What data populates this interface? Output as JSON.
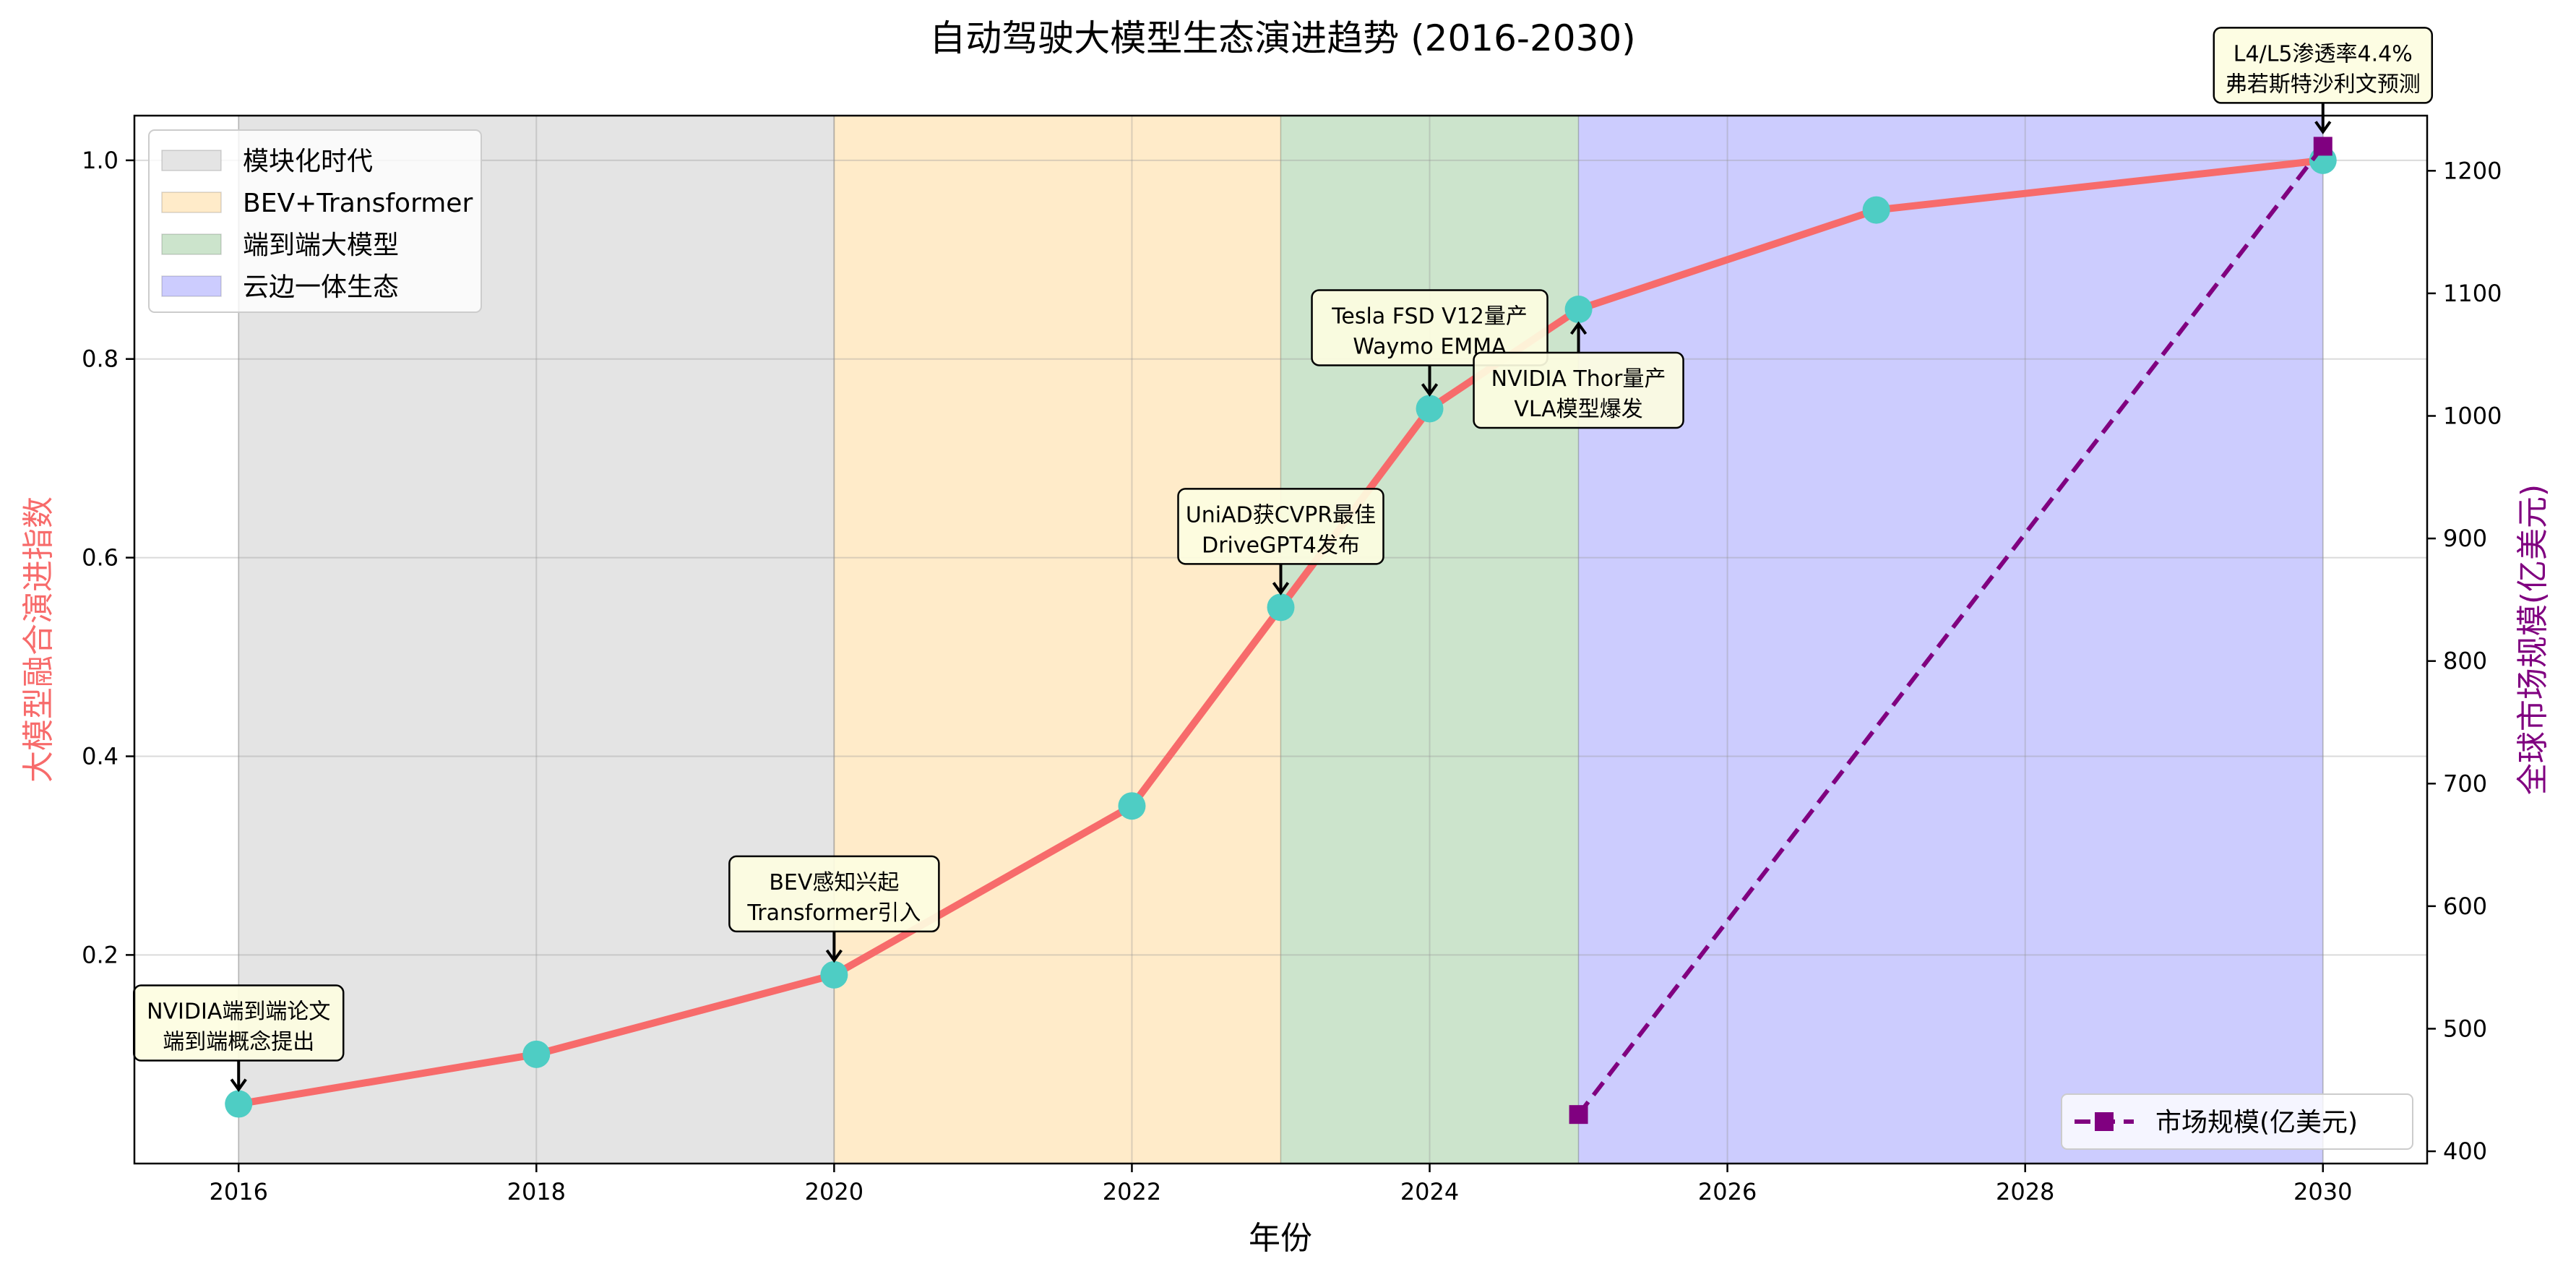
{
  "chart_data": {
    "type": "line",
    "title": "自动驾驶大模型生态演进趋势 (2016-2030)",
    "xlabel": "年份",
    "ylabel_left": "大模型融合演进指数",
    "ylabel_right": "全球市场规模(亿美元)",
    "xlim": [
      2015.3,
      2030.7
    ],
    "ylim_left": [
      -0.01,
      1.045
    ],
    "ylim_right": [
      390,
      1245
    ],
    "x_ticks": [
      2016,
      2018,
      2020,
      2022,
      2024,
      2026,
      2028,
      2030
    ],
    "y_ticks_left": [
      0.2,
      0.4,
      0.6,
      0.8,
      1.0
    ],
    "y_ticks_right": [
      400,
      500,
      600,
      700,
      800,
      900,
      1000,
      1100,
      1200
    ],
    "grid": true,
    "legend_left_position": "top-left",
    "legend_right_position": "bottom-right",
    "eras": [
      {
        "name": "模块化时代",
        "start": 2016,
        "end": 2020,
        "color": "#e4e4e4"
      },
      {
        "name": "BEV+Transformer",
        "start": 2020,
        "end": 2023,
        "color": "#ffebc9"
      },
      {
        "name": "端到端大模型",
        "start": 2023,
        "end": 2025,
        "color": "#cce4cc"
      },
      {
        "name": "云边一体生态",
        "start": 2025,
        "end": 2030,
        "color": "#ccccfe"
      }
    ],
    "series": [
      {
        "axis": "left",
        "color": "#f76b6b",
        "marker_color": "#4ecdc4",
        "x": [
          2016,
          2018,
          2020,
          2022,
          2023,
          2024,
          2025,
          2027,
          2030
        ],
        "y": [
          0.05,
          0.1,
          0.18,
          0.35,
          0.55,
          0.75,
          0.85,
          0.95,
          1.0
        ]
      },
      {
        "axis": "right",
        "name": "市场规模(亿美元)",
        "color": "#800080",
        "x": [
          2025,
          2030
        ],
        "y": [
          430,
          1220
        ]
      }
    ],
    "annotations": [
      {
        "lines": [
          "NVIDIA端到端论文",
          "端到端概念提出"
        ],
        "x": 2016,
        "y": 0.05,
        "axis": "left",
        "placement": "above"
      },
      {
        "lines": [
          "BEV感知兴起",
          "Transformer引入"
        ],
        "x": 2020,
        "y": 0.18,
        "axis": "left",
        "placement": "above"
      },
      {
        "lines": [
          "UniAD获CVPR最佳",
          "DriveGPT4发布"
        ],
        "x": 2023,
        "y": 0.55,
        "axis": "left",
        "placement": "above"
      },
      {
        "lines": [
          "Tesla FSD V12量产",
          "Waymo EMMA"
        ],
        "x": 2024,
        "y": 0.75,
        "axis": "left",
        "placement": "above"
      },
      {
        "lines": [
          "NVIDIA Thor量产",
          "VLA模型爆发"
        ],
        "x": 2025,
        "y": 0.85,
        "axis": "left",
        "placement": "below"
      },
      {
        "lines": [
          "L4/L5渗透率4.4%",
          "弗若斯特沙利文预测"
        ],
        "x": 2030,
        "y": 1220,
        "axis": "right",
        "placement": "above"
      }
    ],
    "colors": {
      "left_axis_label": "#f76b6b",
      "right_axis_label": "#800080",
      "annotation_fill": "#fdfde1"
    }
  }
}
